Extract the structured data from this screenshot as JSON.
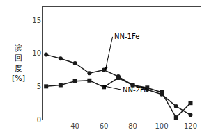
{
  "chart_data": {
    "type": "line",
    "ylabel": [
      "滨",
      "回",
      "度",
      "[%]"
    ],
    "series": [
      {
        "name": "NN-1Fe",
        "color": "#1a1a1a",
        "marker": "circle",
        "x": [
          20,
          30,
          40,
          50,
          60,
          70,
          80,
          90,
          100,
          110,
          120
        ],
        "values": [
          9.8,
          9.2,
          8.5,
          7.0,
          7.5,
          6.5,
          5.2,
          4.5,
          3.8,
          2.0,
          0.7
        ]
      },
      {
        "name": "NN-2Fe",
        "color": "#1a1a1a",
        "marker": "square",
        "x": [
          20,
          30,
          40,
          50,
          60,
          70,
          80,
          90,
          100,
          110,
          120
        ],
        "values": [
          5.0,
          5.2,
          5.8,
          5.9,
          4.9,
          6.3,
          5.2,
          4.8,
          4.1,
          0.3,
          2.5
        ]
      }
    ],
    "annotations": [
      {
        "text": "NN-1Fe",
        "x": 66,
        "y": 12.5,
        "arrow_x": 61,
        "arrow_y": 7.4
      },
      {
        "text": "NN-2Fe",
        "x": 72,
        "y": 4.5,
        "arrow_x": 59,
        "arrow_y": 5.1
      }
    ],
    "xlim": [
      18,
      127
    ],
    "xticks": [
      40,
      60,
      80,
      100,
      120
    ],
    "ylim": [
      0,
      17
    ],
    "yticks": [
      0,
      5,
      10,
      15
    ],
    "grid": false
  }
}
